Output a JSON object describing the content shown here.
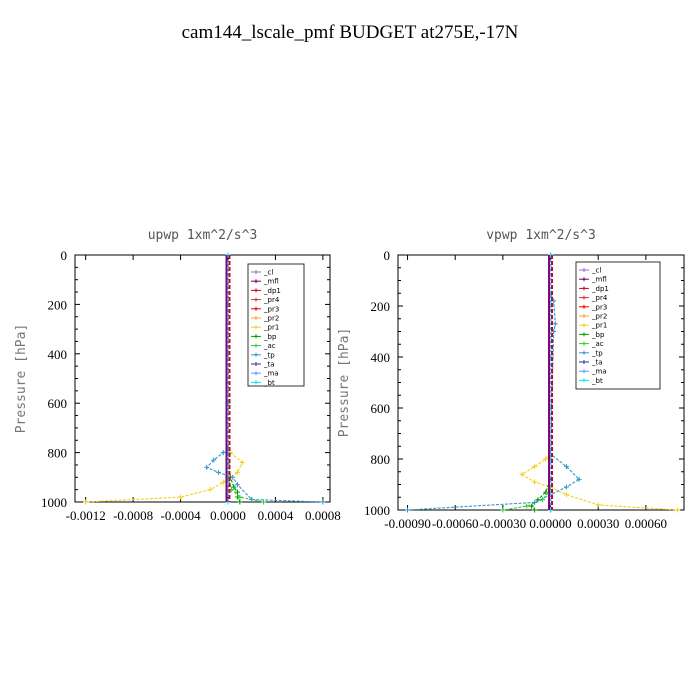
{
  "title": "cam144_lscale_pmf  BUDGET at275E,-17N",
  "chart_data": [
    {
      "type": "line",
      "title": "upwp   1xm^2/s^3",
      "ylabel": "Pressure [hPa]",
      "xlabel": "",
      "xlim": [
        -0.00129,
        0.00086
      ],
      "ylim": [
        1000,
        0
      ],
      "xticks": [
        "-0.0012",
        "-0.0008",
        "-0.0004",
        "0.0000",
        "0.0004",
        "0.0008"
      ],
      "xtick_values": [
        -0.0012,
        -0.0008,
        -0.0004,
        0.0,
        0.0004,
        0.0008
      ],
      "yticks": [
        0,
        200,
        400,
        600,
        800,
        1000
      ],
      "legend_position": "top-right",
      "series": [
        {
          "name": "_cl",
          "color": "#9966cc",
          "x": [
            0,
            0,
            0,
            0,
            0,
            0,
            0
          ],
          "y": [
            0,
            200,
            400,
            600,
            800,
            950,
            1000
          ]
        },
        {
          "name": "_mfl",
          "color": "#800080",
          "x": [
            0,
            0,
            0,
            0,
            0,
            0,
            0
          ],
          "y": [
            0,
            200,
            400,
            600,
            800,
            950,
            1000
          ]
        },
        {
          "name": "_dp1",
          "color": "#cc0033",
          "x": [
            0,
            0,
            0,
            0,
            0,
            0,
            0
          ],
          "y": [
            0,
            200,
            400,
            600,
            800,
            950,
            1000
          ]
        },
        {
          "name": "_pr4",
          "color": "#cc3333",
          "x": [
            0,
            0,
            0,
            0,
            0,
            0,
            0
          ],
          "y": [
            0,
            200,
            400,
            600,
            800,
            950,
            1000
          ]
        },
        {
          "name": "_pr3",
          "color": "#ff0000",
          "x": [
            0,
            0,
            0,
            0,
            0,
            0,
            0
          ],
          "y": [
            0,
            200,
            400,
            600,
            800,
            950,
            1000
          ]
        },
        {
          "name": "_pr2",
          "color": "#ff9933",
          "x": [
            0,
            0,
            0,
            0,
            0,
            0,
            0
          ],
          "y": [
            0,
            200,
            400,
            600,
            800,
            950,
            1000
          ]
        },
        {
          "name": "_pr1",
          "color": "#f2d21b",
          "x": [
            0,
            0,
            0,
            2e-05,
            0.00012,
            8e-05,
            2e-05,
            -4e-05,
            -0.00015,
            -0.0004,
            -0.0012
          ],
          "y": [
            0,
            400,
            780,
            800,
            840,
            880,
            900,
            920,
            950,
            980,
            1000
          ]
        },
        {
          "name": "_bp",
          "color": "#009900",
          "x": [
            0,
            0,
            2e-05,
            5e-05,
            8e-05,
            8e-05,
            0.0001
          ],
          "y": [
            0,
            800,
            900,
            940,
            960,
            980,
            1000
          ]
        },
        {
          "name": "_ac",
          "color": "#33cc33",
          "x": [
            0,
            0,
            3e-05,
            0.0001,
            0.0002,
            0.0003
          ],
          "y": [
            0,
            900,
            950,
            980,
            990,
            1000
          ]
        },
        {
          "name": "_tp",
          "color": "#3399cc",
          "x": [
            0,
            0,
            -4e-05,
            -0.00012,
            -0.00018,
            -8e-05,
            4e-05,
            8e-05,
            0.0002,
            0.0008
          ],
          "y": [
            0,
            780,
            800,
            830,
            860,
            880,
            900,
            930,
            990,
            1000
          ]
        },
        {
          "name": "_ta",
          "color": "#333399",
          "x": [
            0,
            0,
            0,
            0,
            0,
            0
          ],
          "y": [
            0,
            200,
            400,
            600,
            800,
            1000
          ]
        },
        {
          "name": "_ma",
          "color": "#6699ff",
          "x": [
            0,
            0,
            0,
            0,
            0,
            0
          ],
          "y": [
            0,
            200,
            400,
            600,
            800,
            1000
          ]
        },
        {
          "name": "_bt",
          "color": "#00e5ee",
          "x": [
            0,
            0,
            0,
            0,
            0,
            0
          ],
          "y": [
            0,
            200,
            400,
            600,
            800,
            1000
          ]
        }
      ]
    },
    {
      "type": "line",
      "title": "vpwp   1xm^2/s^3",
      "ylabel": "Pressure [hPa]",
      "xlabel": "",
      "xlim": [
        -0.00096,
        0.00084
      ],
      "ylim": [
        1000,
        0
      ],
      "xticks": [
        "-0.00090",
        "-0.00060",
        "-0.00030",
        "0.00000",
        "0.00030",
        "0.00060"
      ],
      "xtick_values": [
        -0.0009,
        -0.0006,
        -0.0003,
        0.0,
        0.0003,
        0.0006
      ],
      "yticks": [
        0,
        200,
        400,
        600,
        800,
        1000
      ],
      "legend_position": "top-right",
      "series": [
        {
          "name": "_cl",
          "color": "#9966cc",
          "x": [
            0,
            0,
            0,
            0,
            0,
            0
          ],
          "y": [
            0,
            200,
            400,
            600,
            800,
            1000
          ]
        },
        {
          "name": "_mfl",
          "color": "#800080",
          "x": [
            0,
            0,
            0,
            0,
            0,
            0
          ],
          "y": [
            0,
            200,
            400,
            600,
            800,
            1000
          ]
        },
        {
          "name": "_dp1",
          "color": "#cc0033",
          "x": [
            0,
            0,
            0,
            0,
            0,
            0
          ],
          "y": [
            0,
            200,
            400,
            600,
            800,
            1000
          ]
        },
        {
          "name": "_pr4",
          "color": "#cc3333",
          "x": [
            0,
            0,
            0,
            0,
            0,
            0
          ],
          "y": [
            0,
            200,
            400,
            600,
            800,
            1000
          ]
        },
        {
          "name": "_pr3",
          "color": "#ff0000",
          "x": [
            0,
            0,
            0,
            0,
            0,
            0
          ],
          "y": [
            0,
            200,
            400,
            600,
            800,
            1000
          ]
        },
        {
          "name": "_pr2",
          "color": "#ff9933",
          "x": [
            0,
            0,
            0,
            0,
            0,
            0
          ],
          "y": [
            0,
            200,
            400,
            600,
            800,
            1000
          ]
        },
        {
          "name": "_pr1",
          "color": "#f2d21b",
          "x": [
            0,
            0,
            -3e-05,
            -0.0001,
            -0.00018,
            -0.0001,
            0,
            0.0001,
            0.0003,
            0.0008
          ],
          "y": [
            0,
            780,
            800,
            830,
            860,
            890,
            910,
            940,
            980,
            1000
          ]
        },
        {
          "name": "_bp",
          "color": "#009900",
          "x": [
            0,
            0,
            -3e-05,
            -8e-05,
            -0.00012,
            -0.0001
          ],
          "y": [
            0,
            880,
            930,
            960,
            985,
            1000
          ]
        },
        {
          "name": "_ac",
          "color": "#33cc33",
          "x": [
            0,
            0,
            -5e-05,
            -0.00015,
            -0.0003
          ],
          "y": [
            0,
            920,
            960,
            985,
            1000
          ]
        },
        {
          "name": "_tp",
          "color": "#3399cc",
          "x": [
            0,
            0,
            2e-05,
            3e-05,
            2e-05,
            0,
            0.0001,
            0.00018,
            0.0001,
            0,
            -0.0001,
            -0.0009
          ],
          "y": [
            0,
            150,
            180,
            270,
            300,
            780,
            830,
            880,
            910,
            940,
            970,
            1000
          ]
        },
        {
          "name": "_ta",
          "color": "#333399",
          "x": [
            0,
            0,
            0,
            0,
            0,
            0
          ],
          "y": [
            0,
            200,
            400,
            600,
            800,
            1000
          ]
        },
        {
          "name": "_ma",
          "color": "#6699ff",
          "x": [
            0,
            0,
            0,
            0,
            0,
            0
          ],
          "y": [
            0,
            200,
            400,
            600,
            800,
            1000
          ]
        },
        {
          "name": "_bt",
          "color": "#00e5ee",
          "x": [
            0,
            0,
            0,
            0,
            0,
            0
          ],
          "y": [
            0,
            200,
            400,
            600,
            800,
            1000
          ]
        }
      ]
    }
  ]
}
